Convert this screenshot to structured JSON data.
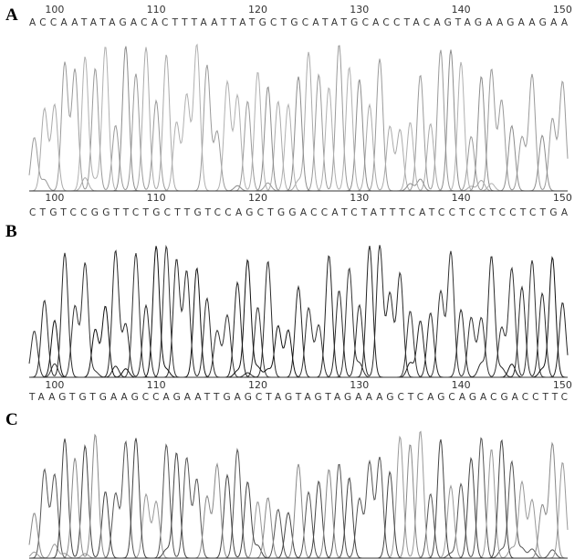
{
  "panels": [
    {
      "label": "A",
      "positions": [
        100,
        110,
        120,
        130,
        140,
        150
      ],
      "sequence": "ACCAATATAGACACTTTAATTATGCTGCATATGCACCTACAGTAGAAGAAGAA"
    },
    {
      "label": "B",
      "positions": [
        100,
        110,
        120,
        130,
        140,
        150
      ],
      "sequence": "CTGTCCGGTTCTGCTTGTCCAGCTGGACCATCTATTTCATCCTCCTCCTCTGA"
    },
    {
      "label": "C",
      "positions": [
        100,
        110,
        120,
        130,
        140,
        150
      ],
      "sequence": "TAAGTGTGAAGCCAGAATTGAGCTAGTAGTAGAAAGCTCAGCAGACGACCTTC"
    }
  ]
}
